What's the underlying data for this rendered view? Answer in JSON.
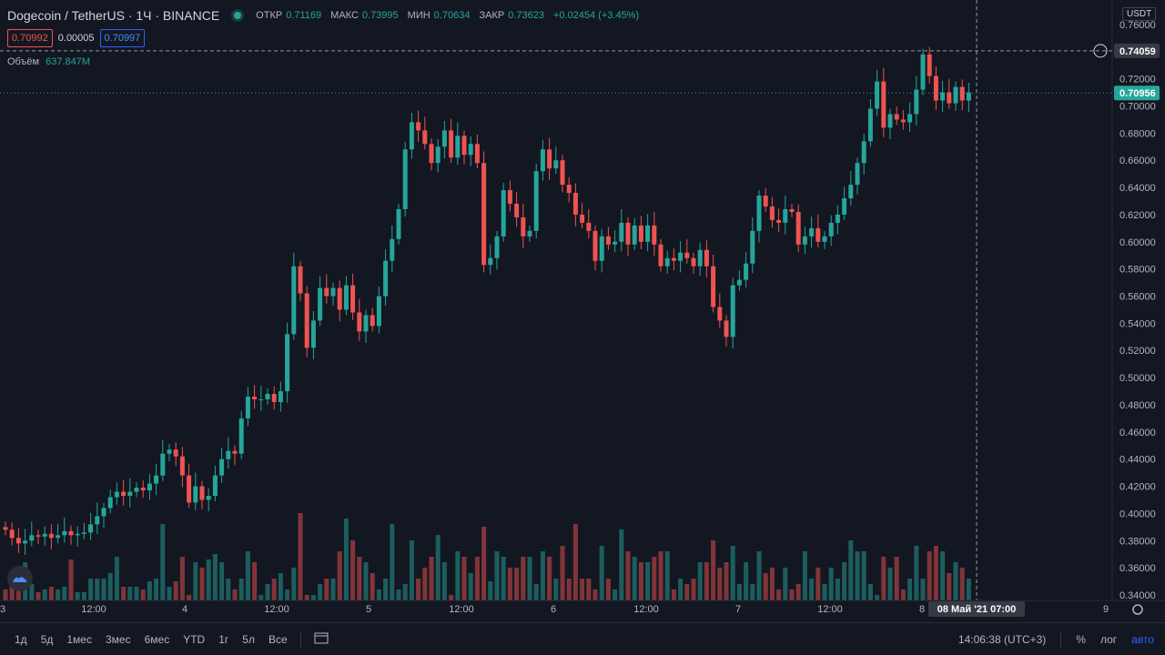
{
  "header": {
    "symbol": "Dogecoin / TetherUS · 1Ч · BINANCE",
    "open_label": "ОТКР",
    "open": "0.71169",
    "high_label": "МАКС",
    "high": "0.73995",
    "low_label": "МИН",
    "low": "0.70634",
    "close_label": "ЗАКР",
    "close": "0.73623",
    "change": "+0.02454 (+3.45%)"
  },
  "quotes": {
    "sell": "0.70992",
    "spread": "0.00005",
    "buy": "0.70997"
  },
  "volume_legend": {
    "label": "Объём",
    "value": "637.847M"
  },
  "price_axis": {
    "currency": "USDT",
    "labels": [
      "0.76000",
      "0.72000",
      "0.70000",
      "0.68000",
      "0.66000",
      "0.64000",
      "0.62000",
      "0.60000",
      "0.58000",
      "0.56000",
      "0.54000",
      "0.52000",
      "0.50000",
      "0.48000",
      "0.46000",
      "0.44000",
      "0.42000",
      "0.40000",
      "0.38000",
      "0.36000",
      "0.34000"
    ],
    "crosshair_price": "0.74059",
    "last_price": "0.70956"
  },
  "time_axis": {
    "labels": [
      "3",
      "12:00",
      "4",
      "12:00",
      "5",
      "12:00",
      "6",
      "12:00",
      "7",
      "12:00",
      "8",
      "9"
    ],
    "crosshair_time": "08 Май '21   07:00"
  },
  "bottombar": {
    "ranges": [
      "1д",
      "5д",
      "1мес",
      "3мес",
      "6мес",
      "YTD",
      "1г",
      "5л",
      "Все"
    ],
    "clock": "14:06:38 (UTC+3)",
    "percent": "%",
    "log": "лог",
    "auto": "авто"
  },
  "colors": {
    "up": "#26a69a",
    "down": "#ef5350",
    "background": "#131722"
  },
  "chart_data": {
    "type": "candlestick",
    "closes": [
      0.388,
      0.382,
      0.378,
      0.38,
      0.384,
      0.383,
      0.385,
      0.382,
      0.384,
      0.387,
      0.384,
      0.385,
      0.386,
      0.392,
      0.398,
      0.404,
      0.412,
      0.416,
      0.413,
      0.416,
      0.419,
      0.417,
      0.422,
      0.428,
      0.444,
      0.447,
      0.442,
      0.428,
      0.408,
      0.42,
      0.41,
      0.413,
      0.428,
      0.44,
      0.446,
      0.444,
      0.47,
      0.486,
      0.484,
      0.484,
      0.488,
      0.482,
      0.49,
      0.532,
      0.582,
      0.562,
      0.522,
      0.542,
      0.566,
      0.56,
      0.566,
      0.55,
      0.568,
      0.548,
      0.534,
      0.546,
      0.538,
      0.56,
      0.586,
      0.602,
      0.624,
      0.668,
      0.688,
      0.682,
      0.672,
      0.658,
      0.67,
      0.682,
      0.662,
      0.678,
      0.664,
      0.672,
      0.658,
      0.583,
      0.588,
      0.604,
      0.638,
      0.628,
      0.618,
      0.604,
      0.608,
      0.652,
      0.668,
      0.654,
      0.66,
      0.642,
      0.636,
      0.62,
      0.614,
      0.608,
      0.586,
      0.604,
      0.598,
      0.6,
      0.614,
      0.598,
      0.612,
      0.6,
      0.612,
      0.598,
      0.582,
      0.588,
      0.586,
      0.592,
      0.588,
      0.582,
      0.594,
      0.582,
      0.552,
      0.542,
      0.53,
      0.568,
      0.572,
      0.584,
      0.608,
      0.634,
      0.626,
      0.616,
      0.614,
      0.624,
      0.622,
      0.598,
      0.604,
      0.61,
      0.6,
      0.604,
      0.614,
      0.62,
      0.632,
      0.642,
      0.658,
      0.674,
      0.698,
      0.718,
      0.684,
      0.694,
      0.69,
      0.688,
      0.694,
      0.712,
      0.738,
      0.722,
      0.704,
      0.71,
      0.702,
      0.714,
      0.704,
      0.71
    ],
    "x_labels": [
      "3",
      "12:00",
      "4",
      "12:00",
      "5",
      "12:00",
      "6",
      "12:00",
      "7",
      "12:00",
      "8",
      "9"
    ],
    "y_range": [
      0.336,
      0.778
    ]
  }
}
